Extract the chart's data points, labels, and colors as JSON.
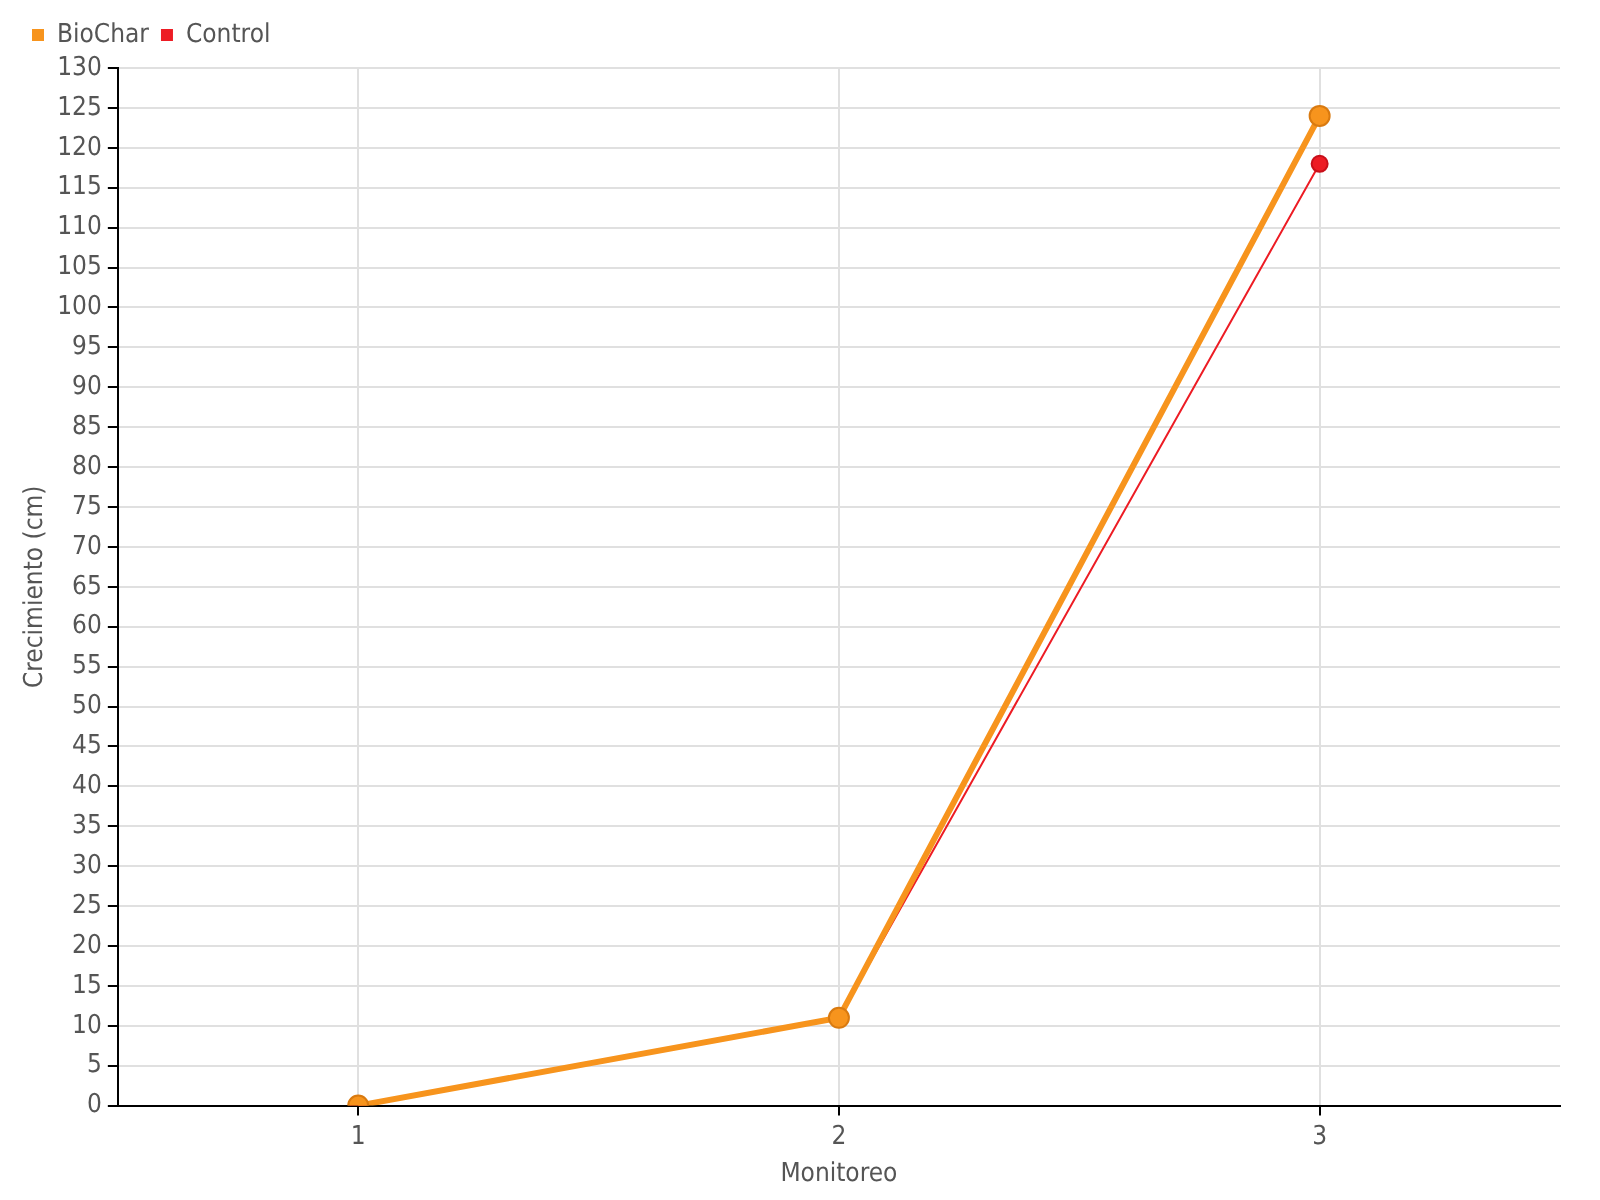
{
  "chart_data": {
    "type": "line",
    "xlabel": "Monitoreo",
    "ylabel": "Crecimiento (cm)",
    "x": [
      1,
      2,
      3
    ],
    "series": [
      {
        "name": "BioChar",
        "color": "#f7941d",
        "values": [
          0,
          11,
          124
        ]
      },
      {
        "name": "Control",
        "color": "#ed1c24",
        "values": [
          0,
          11,
          118
        ]
      }
    ],
    "xlim": [
      0.5,
      3.5
    ],
    "xticks": [
      1,
      2,
      3
    ],
    "ylim": [
      0,
      130
    ],
    "yticks": [
      0,
      5,
      10,
      15,
      20,
      25,
      30,
      35,
      40,
      45,
      50,
      55,
      60,
      65,
      70,
      75,
      80,
      85,
      90,
      95,
      100,
      105,
      110,
      115,
      120,
      125,
      130
    ],
    "grid": true,
    "legend": "top left",
    "marker": "circle",
    "line_style": "solid"
  }
}
